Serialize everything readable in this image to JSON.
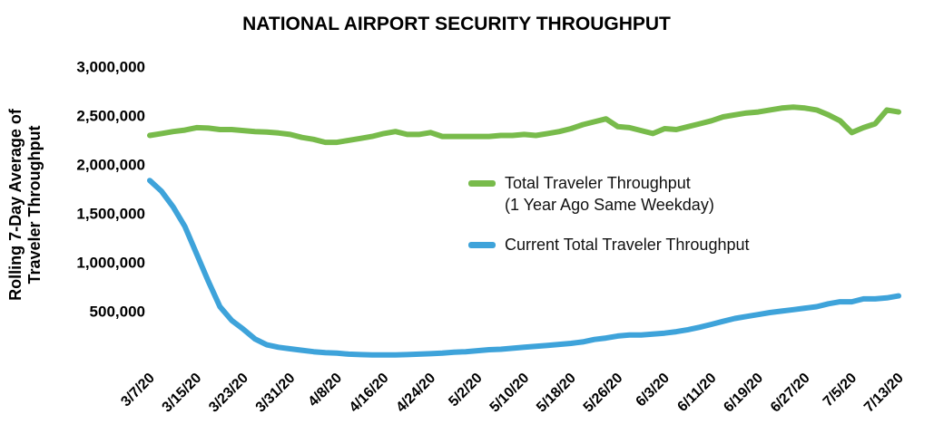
{
  "chart_data": {
    "type": "line",
    "title": "NATIONAL AIRPORT SECURITY THROUGHPUT",
    "y_label": "Rolling 7-Day Average of\nTraveler Throughput",
    "categories": [
      "3/7/20",
      null,
      null,
      null,
      "3/15/20",
      null,
      null,
      null,
      "3/23/20",
      null,
      null,
      null,
      "3/31/20",
      null,
      null,
      null,
      "4/8/20",
      null,
      null,
      null,
      "4/16/20",
      null,
      null,
      null,
      "4/24/20",
      null,
      null,
      null,
      "5/2/20",
      null,
      null,
      null,
      "5/10/20",
      null,
      null,
      null,
      "5/18/20",
      null,
      null,
      null,
      "5/26/20",
      null,
      null,
      null,
      "6/3/20",
      null,
      null,
      null,
      "6/11/20",
      null,
      null,
      null,
      "6/19/20",
      null,
      null,
      null,
      "6/27/20",
      null,
      null,
      null,
      "7/5/20",
      null,
      null,
      null,
      "7/13/20"
    ],
    "series": [
      {
        "name": "Total Traveler Throughput\n(1 Year Ago Same Weekday)",
        "color": "#78bb4b",
        "values": [
          2310000,
          2330000,
          2350000,
          2365000,
          2390000,
          2385000,
          2370000,
          2370000,
          2360000,
          2350000,
          2345000,
          2335000,
          2320000,
          2290000,
          2270000,
          2240000,
          2240000,
          2260000,
          2280000,
          2300000,
          2330000,
          2350000,
          2320000,
          2320000,
          2340000,
          2300000,
          2300000,
          2300000,
          2300000,
          2300000,
          2310000,
          2310000,
          2320000,
          2310000,
          2330000,
          2350000,
          2380000,
          2420000,
          2450000,
          2480000,
          2400000,
          2390000,
          2360000,
          2330000,
          2380000,
          2370000,
          2400000,
          2430000,
          2460000,
          2500000,
          2520000,
          2540000,
          2550000,
          2570000,
          2590000,
          2600000,
          2590000,
          2570000,
          2520000,
          2460000,
          2340000,
          2390000,
          2430000,
          2570000,
          2550000
        ]
      },
      {
        "name": "Current Total Traveler Throughput",
        "color": "#3ea3da",
        "values": [
          1850000,
          1740000,
          1580000,
          1380000,
          1100000,
          820000,
          560000,
          420000,
          330000,
          230000,
          170000,
          145000,
          130000,
          115000,
          100000,
          90000,
          85000,
          75000,
          70000,
          68000,
          68000,
          68000,
          70000,
          75000,
          80000,
          85000,
          95000,
          100000,
          110000,
          120000,
          125000,
          135000,
          145000,
          155000,
          165000,
          175000,
          185000,
          200000,
          225000,
          240000,
          260000,
          270000,
          270000,
          280000,
          290000,
          305000,
          325000,
          350000,
          380000,
          410000,
          440000,
          460000,
          480000,
          500000,
          515000,
          530000,
          545000,
          560000,
          590000,
          610000,
          610000,
          640000,
          640000,
          650000,
          670000
        ]
      }
    ],
    "ylim": [
      0,
      3000000
    ],
    "yticks": [
      {
        "value": 500000,
        "label": "500,000"
      },
      {
        "value": 1000000,
        "label": "1,000,000"
      },
      {
        "value": 1500000,
        "label": "1,500,000"
      },
      {
        "value": 2000000,
        "label": "2,000,000"
      },
      {
        "value": 2500000,
        "label": "2,500,000"
      },
      {
        "value": 3000000,
        "label": "3,000,000"
      }
    ],
    "grid": false
  }
}
